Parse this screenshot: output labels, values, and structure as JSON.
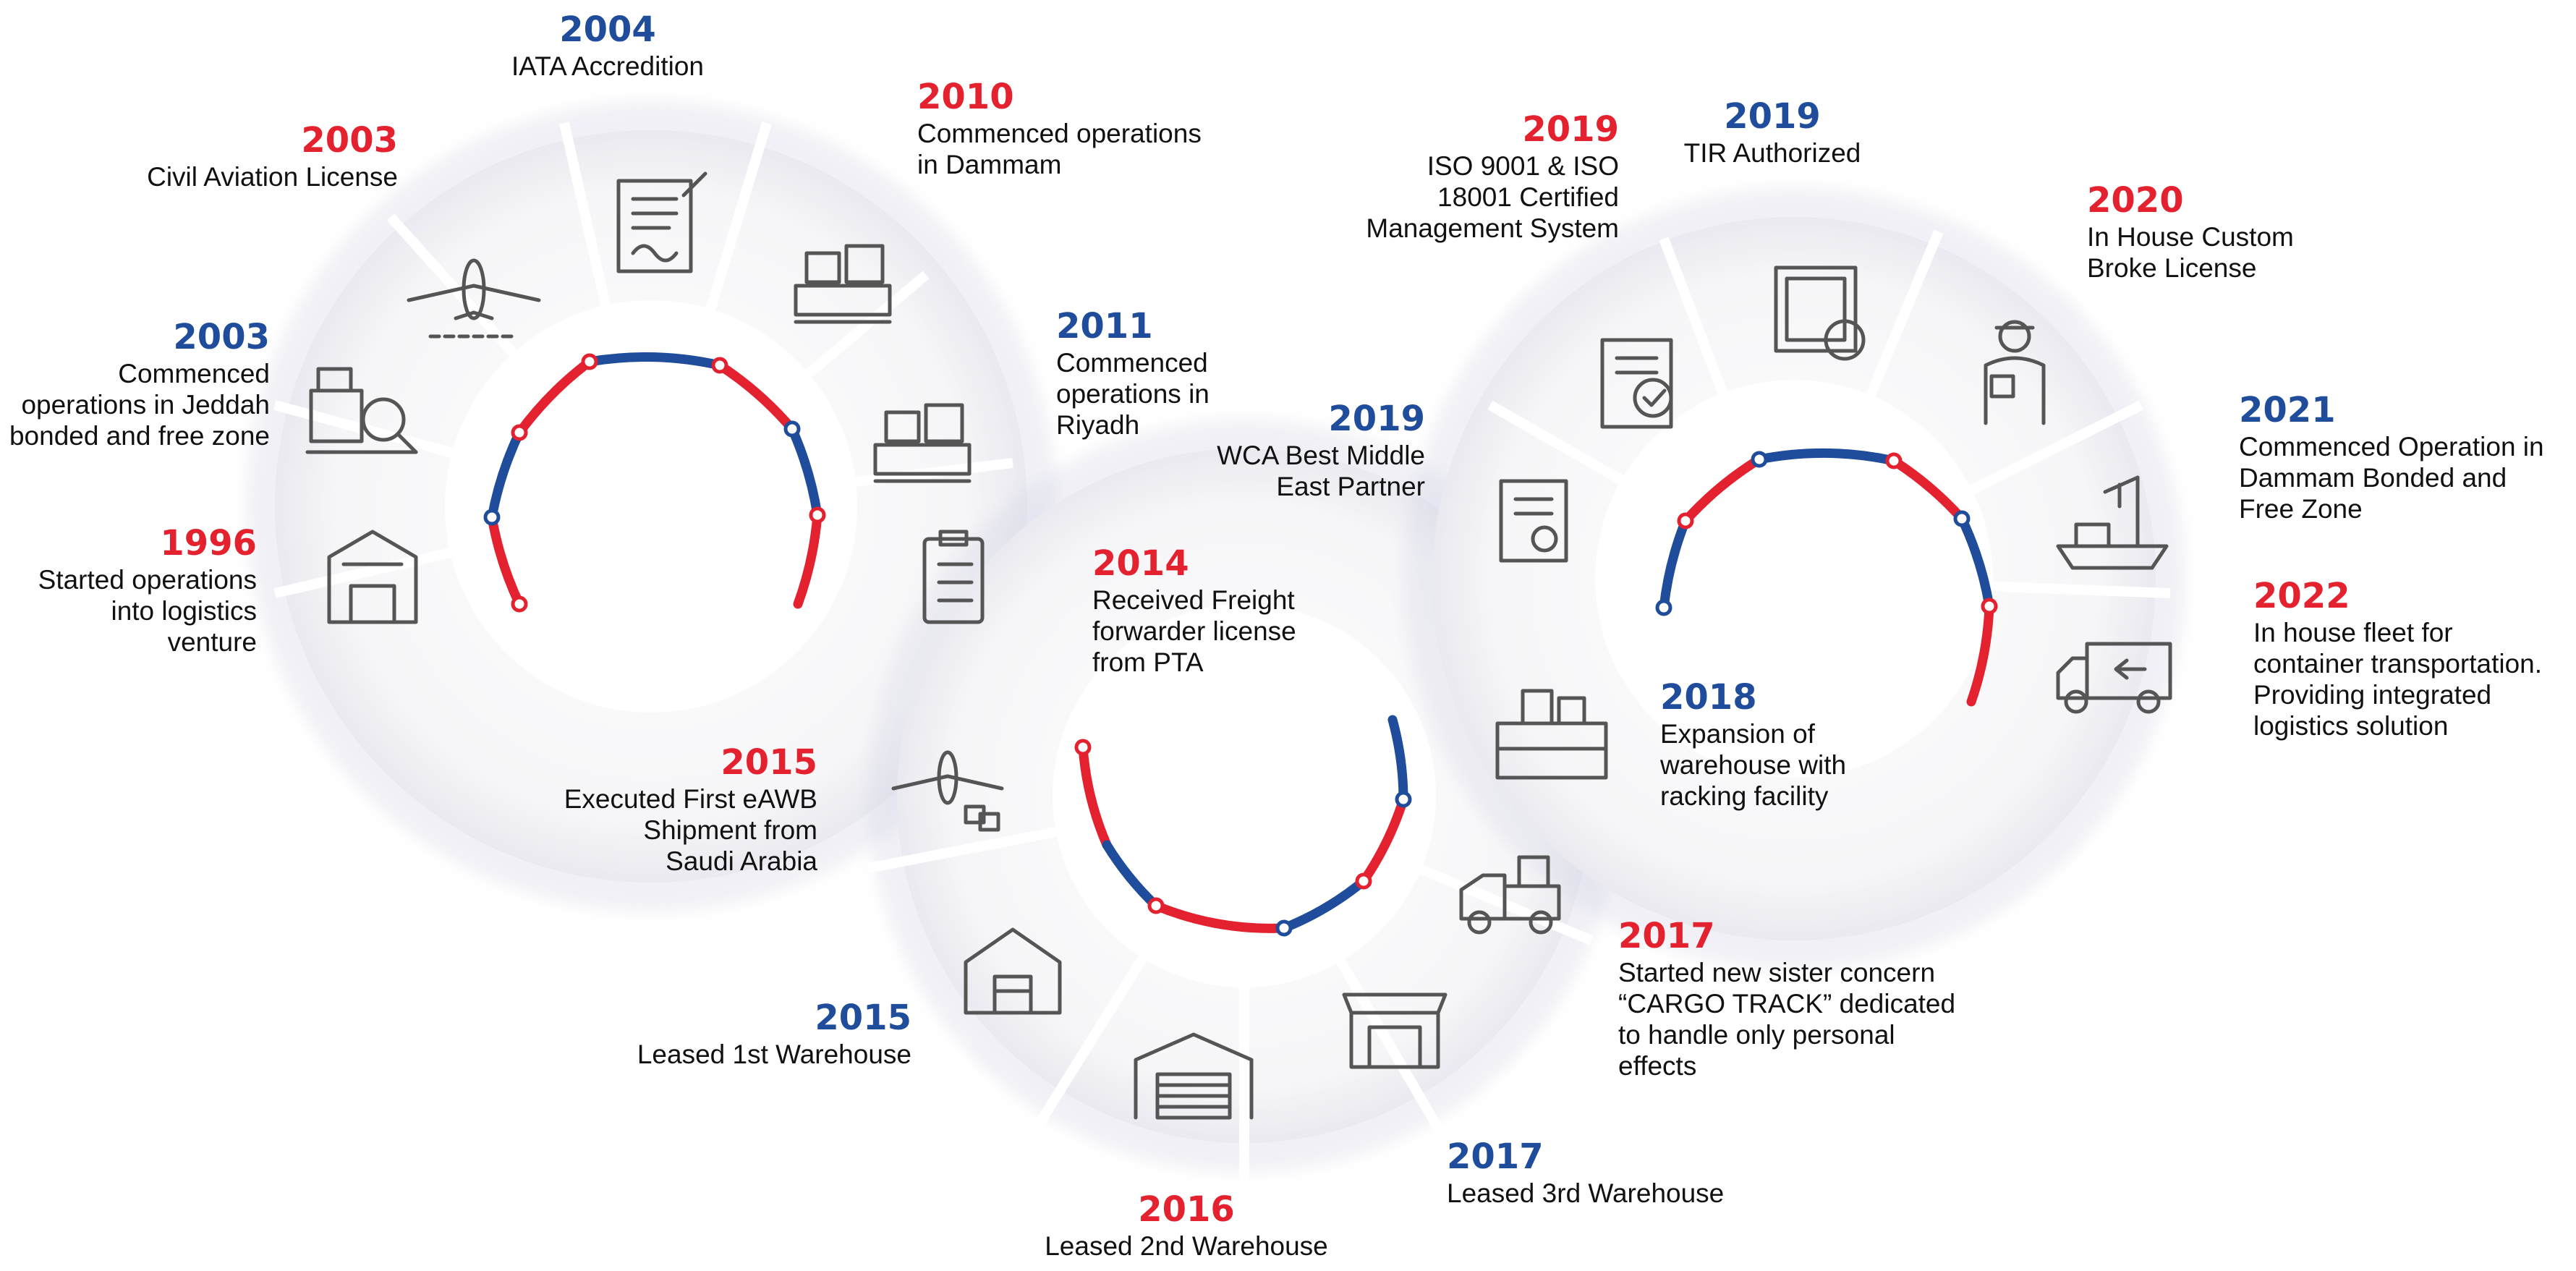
{
  "colors": {
    "red": "#e3212f",
    "blue": "#1f4d9b",
    "icon": "#555555",
    "tile": "#f4f4f6"
  },
  "milestones": [
    {
      "year": "2003",
      "text": "Civil Aviation License",
      "color": "red",
      "icon": "airplane-icon"
    },
    {
      "year": "2004",
      "text": "IATA Accredition",
      "color": "blue",
      "icon": "document-sign-icon"
    },
    {
      "year": "2010",
      "text": "Commenced operations\nin Dammam",
      "color": "red",
      "icon": "office-desk-icon"
    },
    {
      "year": "2003",
      "text": "Commenced\noperations in Jeddah\nbonded and free zone",
      "color": "blue",
      "icon": "cargo-inspect-icon"
    },
    {
      "year": "2011",
      "text": "Commenced\noperations in\nRiyadh",
      "color": "blue",
      "icon": "office-desk-icon"
    },
    {
      "year": "1996",
      "text": "Started operations\ninto logistics\nventure",
      "color": "red",
      "icon": "logistics-building-icon"
    },
    {
      "year": "2014",
      "text": "Received Freight\nforwarder license\nfrom PTA",
      "color": "red",
      "icon": "clipboard-icon"
    },
    {
      "year": "2015",
      "text": "Executed First eAWB\nShipment from\nSaudi Arabia",
      "color": "red",
      "icon": "airplane-cargo-icon"
    },
    {
      "year": "2015",
      "text": "Leased 1st Warehouse",
      "color": "blue",
      "icon": "warehouse-icon"
    },
    {
      "year": "2016",
      "text": "Leased 2nd Warehouse",
      "color": "red",
      "icon": "garage-icon"
    },
    {
      "year": "2017",
      "text": "Leased 3rd Warehouse",
      "color": "blue",
      "icon": "warehouse-shop-icon"
    },
    {
      "year": "2017",
      "text": "Started new sister concern\n“CARGO TRACK” dedicated\nto handle only personal\neffects",
      "color": "red",
      "icon": "truck-boxes-icon"
    },
    {
      "year": "2018",
      "text": "Expansion of\nwarehouse with\nracking facility",
      "color": "blue",
      "icon": "racking-icon"
    },
    {
      "year": "2019",
      "text": "WCA Best Middle\nEast Partner",
      "color": "blue",
      "icon": "certificate-icon"
    },
    {
      "year": "2019",
      "text": "ISO 9001 & ISO\n18001 Certified\nManagement System",
      "color": "red",
      "icon": "certified-doc-icon"
    },
    {
      "year": "2019",
      "text": "TIR Authorized",
      "color": "blue",
      "icon": "seal-certificate-icon"
    },
    {
      "year": "2020",
      "text": "In House Custom\nBroke License",
      "color": "red",
      "icon": "customs-officer-icon"
    },
    {
      "year": "2021",
      "text": "Commenced Operation in\nDammam  Bonded and\nFree Zone",
      "color": "blue",
      "icon": "ship-crane-icon"
    },
    {
      "year": "2022",
      "text": "In house fleet for\ncontainer transportation.\nProviding integrated\nlogistics solution",
      "color": "red",
      "icon": "delivery-truck-icon"
    }
  ]
}
